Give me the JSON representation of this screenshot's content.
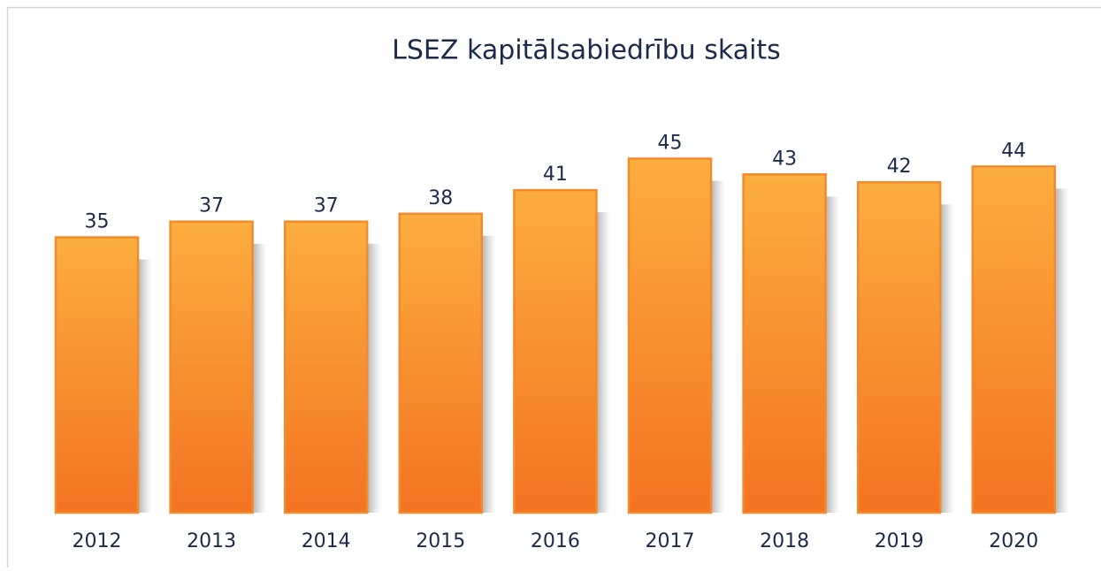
{
  "chart_data": {
    "type": "bar",
    "title": "LSEZ kapitālsabiedrību skaits",
    "categories": [
      "2012",
      "2013",
      "2014",
      "2015",
      "2016",
      "2017",
      "2018",
      "2019",
      "2020"
    ],
    "values": [
      35,
      37,
      37,
      38,
      41,
      45,
      43,
      42,
      44
    ],
    "color": "#f58a2c"
  }
}
